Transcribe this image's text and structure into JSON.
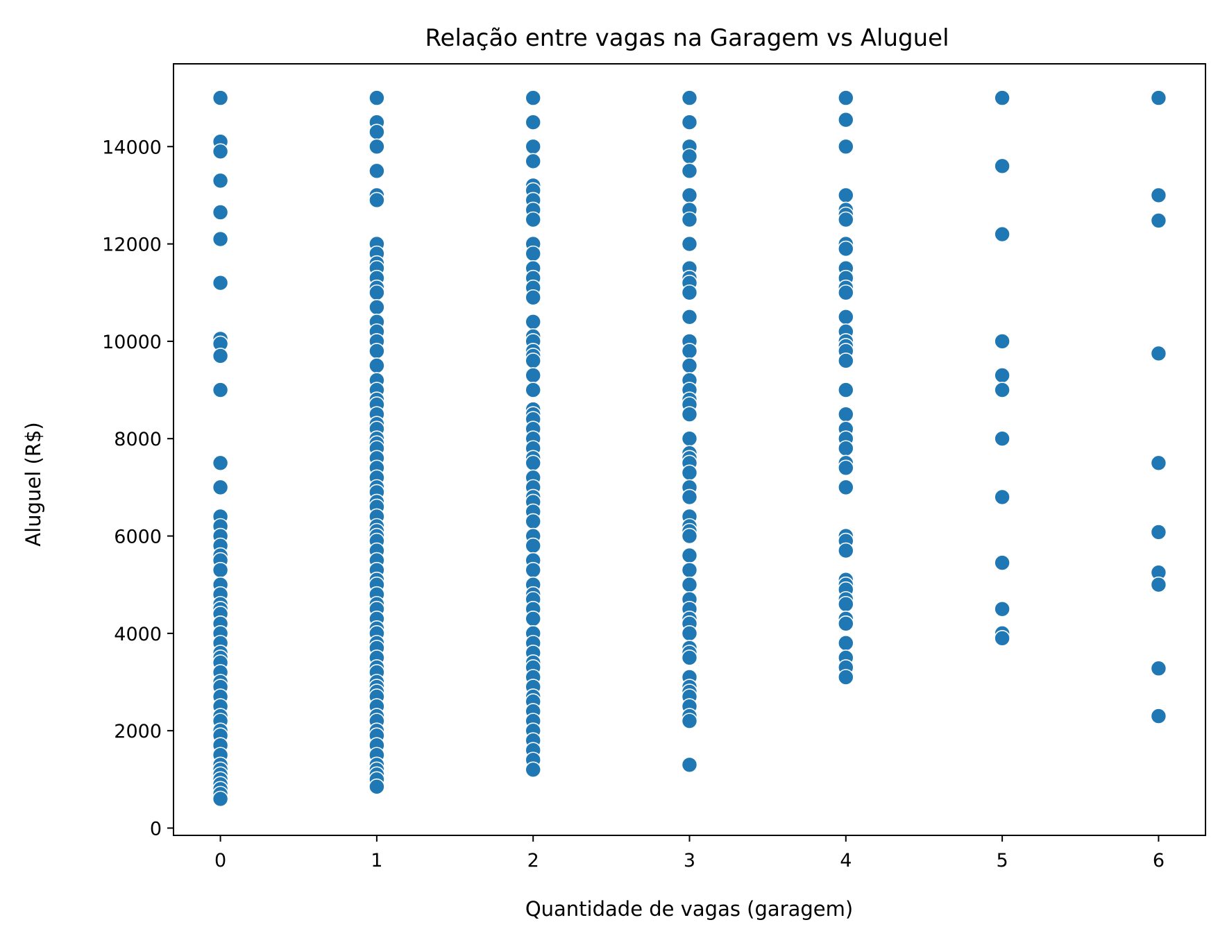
{
  "chart_data": {
    "type": "scatter",
    "title": "Relação entre vagas na Garagem vs Aluguel",
    "xlabel": "Quantidade de vagas (garagem)",
    "ylabel": "Aluguel (R$)",
    "xlim": [
      -0.3,
      6.3
    ],
    "ylim": [
      -150,
      15700
    ],
    "x_ticks": [
      0,
      1,
      2,
      3,
      4,
      5,
      6
    ],
    "y_ticks": [
      0,
      2000,
      4000,
      6000,
      8000,
      10000,
      12000,
      14000
    ],
    "grid": false,
    "marker_color": "#1f77b4",
    "marker_edge_color": "#ffffff",
    "series": [
      {
        "points": [
          [
            0,
            15000
          ],
          [
            0,
            14100
          ],
          [
            0,
            13900
          ],
          [
            0,
            13300
          ],
          [
            0,
            12650
          ],
          [
            0,
            12100
          ],
          [
            0,
            11200
          ],
          [
            0,
            10050
          ],
          [
            0,
            9950
          ],
          [
            0,
            9700
          ],
          [
            0,
            9000
          ],
          [
            0,
            7500
          ],
          [
            0,
            7000
          ],
          [
            0,
            6400
          ],
          [
            0,
            6200
          ],
          [
            0,
            6000
          ],
          [
            0,
            5800
          ],
          [
            0,
            5600
          ],
          [
            0,
            5500
          ],
          [
            0,
            5300
          ],
          [
            0,
            5000
          ],
          [
            0,
            4800
          ],
          [
            0,
            4600
          ],
          [
            0,
            4500
          ],
          [
            0,
            4400
          ],
          [
            0,
            4200
          ],
          [
            0,
            4000
          ],
          [
            0,
            3800
          ],
          [
            0,
            3600
          ],
          [
            0,
            3500
          ],
          [
            0,
            3400
          ],
          [
            0,
            3200
          ],
          [
            0,
            3000
          ],
          [
            0,
            2900
          ],
          [
            0,
            2700
          ],
          [
            0,
            2500
          ],
          [
            0,
            2300
          ],
          [
            0,
            2200
          ],
          [
            0,
            2000
          ],
          [
            0,
            1900
          ],
          [
            0,
            1700
          ],
          [
            0,
            1500
          ],
          [
            0,
            1300
          ],
          [
            0,
            1200
          ],
          [
            0,
            1100
          ],
          [
            0,
            1000
          ],
          [
            0,
            900
          ],
          [
            0,
            800
          ],
          [
            0,
            700
          ],
          [
            0,
            600
          ],
          [
            1,
            15000
          ],
          [
            1,
            14500
          ],
          [
            1,
            14300
          ],
          [
            1,
            14000
          ],
          [
            1,
            13500
          ],
          [
            1,
            13000
          ],
          [
            1,
            12900
          ],
          [
            1,
            12000
          ],
          [
            1,
            11800
          ],
          [
            1,
            11600
          ],
          [
            1,
            11500
          ],
          [
            1,
            11300
          ],
          [
            1,
            11100
          ],
          [
            1,
            11000
          ],
          [
            1,
            10700
          ],
          [
            1,
            10400
          ],
          [
            1,
            10200
          ],
          [
            1,
            10000
          ],
          [
            1,
            9800
          ],
          [
            1,
            9500
          ],
          [
            1,
            9200
          ],
          [
            1,
            9000
          ],
          [
            1,
            8800
          ],
          [
            1,
            8700
          ],
          [
            1,
            8500
          ],
          [
            1,
            8300
          ],
          [
            1,
            8200
          ],
          [
            1,
            8000
          ],
          [
            1,
            7900
          ],
          [
            1,
            7800
          ],
          [
            1,
            7600
          ],
          [
            1,
            7400
          ],
          [
            1,
            7200
          ],
          [
            1,
            7000
          ],
          [
            1,
            6900
          ],
          [
            1,
            6700
          ],
          [
            1,
            6600
          ],
          [
            1,
            6400
          ],
          [
            1,
            6200
          ],
          [
            1,
            6100
          ],
          [
            1,
            6000
          ],
          [
            1,
            5900
          ],
          [
            1,
            5700
          ],
          [
            1,
            5500
          ],
          [
            1,
            5300
          ],
          [
            1,
            5100
          ],
          [
            1,
            5000
          ],
          [
            1,
            4800
          ],
          [
            1,
            4600
          ],
          [
            1,
            4500
          ],
          [
            1,
            4300
          ],
          [
            1,
            4100
          ],
          [
            1,
            4000
          ],
          [
            1,
            3800
          ],
          [
            1,
            3700
          ],
          [
            1,
            3500
          ],
          [
            1,
            3300
          ],
          [
            1,
            3200
          ],
          [
            1,
            3000
          ],
          [
            1,
            2900
          ],
          [
            1,
            2800
          ],
          [
            1,
            2700
          ],
          [
            1,
            2500
          ],
          [
            1,
            2300
          ],
          [
            1,
            2200
          ],
          [
            1,
            2000
          ],
          [
            1,
            1900
          ],
          [
            1,
            1700
          ],
          [
            1,
            1500
          ],
          [
            1,
            1300
          ],
          [
            1,
            1200
          ],
          [
            1,
            1100
          ],
          [
            1,
            1000
          ],
          [
            1,
            850
          ],
          [
            2,
            15000
          ],
          [
            2,
            14500
          ],
          [
            2,
            14000
          ],
          [
            2,
            13700
          ],
          [
            2,
            13200
          ],
          [
            2,
            13100
          ],
          [
            2,
            12900
          ],
          [
            2,
            12700
          ],
          [
            2,
            12500
          ],
          [
            2,
            12000
          ],
          [
            2,
            11800
          ],
          [
            2,
            11500
          ],
          [
            2,
            11300
          ],
          [
            2,
            11100
          ],
          [
            2,
            10900
          ],
          [
            2,
            10400
          ],
          [
            2,
            10100
          ],
          [
            2,
            10000
          ],
          [
            2,
            9800
          ],
          [
            2,
            9700
          ],
          [
            2,
            9600
          ],
          [
            2,
            9300
          ],
          [
            2,
            9000
          ],
          [
            2,
            8600
          ],
          [
            2,
            8500
          ],
          [
            2,
            8400
          ],
          [
            2,
            8200
          ],
          [
            2,
            8000
          ],
          [
            2,
            7800
          ],
          [
            2,
            7600
          ],
          [
            2,
            7500
          ],
          [
            2,
            7200
          ],
          [
            2,
            7000
          ],
          [
            2,
            6800
          ],
          [
            2,
            6700
          ],
          [
            2,
            6500
          ],
          [
            2,
            6300
          ],
          [
            2,
            6000
          ],
          [
            2,
            5800
          ],
          [
            2,
            5500
          ],
          [
            2,
            5300
          ],
          [
            2,
            5000
          ],
          [
            2,
            4800
          ],
          [
            2,
            4700
          ],
          [
            2,
            4500
          ],
          [
            2,
            4300
          ],
          [
            2,
            4000
          ],
          [
            2,
            3800
          ],
          [
            2,
            3600
          ],
          [
            2,
            3400
          ],
          [
            2,
            3300
          ],
          [
            2,
            3100
          ],
          [
            2,
            2900
          ],
          [
            2,
            2700
          ],
          [
            2,
            2600
          ],
          [
            2,
            2400
          ],
          [
            2,
            2200
          ],
          [
            2,
            2000
          ],
          [
            2,
            1800
          ],
          [
            2,
            1600
          ],
          [
            2,
            1400
          ],
          [
            2,
            1200
          ],
          [
            3,
            15000
          ],
          [
            3,
            14500
          ],
          [
            3,
            14000
          ],
          [
            3,
            13800
          ],
          [
            3,
            13500
          ],
          [
            3,
            13000
          ],
          [
            3,
            12700
          ],
          [
            3,
            12500
          ],
          [
            3,
            12000
          ],
          [
            3,
            11500
          ],
          [
            3,
            11300
          ],
          [
            3,
            11200
          ],
          [
            3,
            11000
          ],
          [
            3,
            10500
          ],
          [
            3,
            10000
          ],
          [
            3,
            9800
          ],
          [
            3,
            9500
          ],
          [
            3,
            9200
          ],
          [
            3,
            9000
          ],
          [
            3,
            8800
          ],
          [
            3,
            8700
          ],
          [
            3,
            8500
          ],
          [
            3,
            8000
          ],
          [
            3,
            7700
          ],
          [
            3,
            7600
          ],
          [
            3,
            7500
          ],
          [
            3,
            7300
          ],
          [
            3,
            7000
          ],
          [
            3,
            6800
          ],
          [
            3,
            6400
          ],
          [
            3,
            6200
          ],
          [
            3,
            6100
          ],
          [
            3,
            6000
          ],
          [
            3,
            5600
          ],
          [
            3,
            5300
          ],
          [
            3,
            5000
          ],
          [
            3,
            4700
          ],
          [
            3,
            4500
          ],
          [
            3,
            4300
          ],
          [
            3,
            4200
          ],
          [
            3,
            4000
          ],
          [
            3,
            3700
          ],
          [
            3,
            3600
          ],
          [
            3,
            3500
          ],
          [
            3,
            3100
          ],
          [
            3,
            2900
          ],
          [
            3,
            2800
          ],
          [
            3,
            2700
          ],
          [
            3,
            2500
          ],
          [
            3,
            2300
          ],
          [
            3,
            2200
          ],
          [
            3,
            1300
          ],
          [
            4,
            15000
          ],
          [
            4,
            14550
          ],
          [
            4,
            14000
          ],
          [
            4,
            13000
          ],
          [
            4,
            12700
          ],
          [
            4,
            12600
          ],
          [
            4,
            12500
          ],
          [
            4,
            12000
          ],
          [
            4,
            11900
          ],
          [
            4,
            11500
          ],
          [
            4,
            11300
          ],
          [
            4,
            11100
          ],
          [
            4,
            11000
          ],
          [
            4,
            10500
          ],
          [
            4,
            10200
          ],
          [
            4,
            10000
          ],
          [
            4,
            9900
          ],
          [
            4,
            9800
          ],
          [
            4,
            9600
          ],
          [
            4,
            9000
          ],
          [
            4,
            8500
          ],
          [
            4,
            8200
          ],
          [
            4,
            8000
          ],
          [
            4,
            7800
          ],
          [
            4,
            7500
          ],
          [
            4,
            7400
          ],
          [
            4,
            7000
          ],
          [
            4,
            6000
          ],
          [
            4,
            5900
          ],
          [
            4,
            5700
          ],
          [
            4,
            5100
          ],
          [
            4,
            5000
          ],
          [
            4,
            4900
          ],
          [
            4,
            4700
          ],
          [
            4,
            4600
          ],
          [
            4,
            4300
          ],
          [
            4,
            4200
          ],
          [
            4,
            3800
          ],
          [
            4,
            3500
          ],
          [
            4,
            3300
          ],
          [
            4,
            3100
          ],
          [
            5,
            15000
          ],
          [
            5,
            13600
          ],
          [
            5,
            12200
          ],
          [
            5,
            10000
          ],
          [
            5,
            9300
          ],
          [
            5,
            9000
          ],
          [
            5,
            8000
          ],
          [
            5,
            6800
          ],
          [
            5,
            5450
          ],
          [
            5,
            4500
          ],
          [
            5,
            4000
          ],
          [
            5,
            3900
          ],
          [
            6,
            15000
          ],
          [
            6,
            13000
          ],
          [
            6,
            12480
          ],
          [
            6,
            9750
          ],
          [
            6,
            7500
          ],
          [
            6,
            6080
          ],
          [
            6,
            5250
          ],
          [
            6,
            5000
          ],
          [
            6,
            3280
          ],
          [
            6,
            2300
          ]
        ]
      }
    ]
  }
}
